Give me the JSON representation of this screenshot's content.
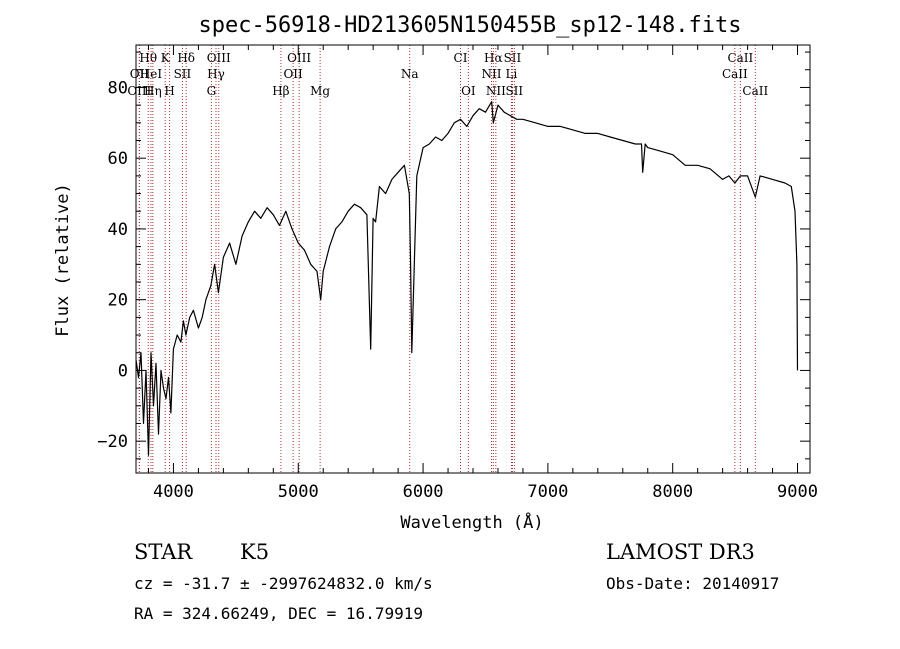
{
  "chart_data": {
    "type": "line",
    "title": "spec-56918-HD213605N150455B_sp12-148.fits",
    "xlabel": "Wavelength (Å)",
    "ylabel": "Flux (relative)",
    "xlim": [
      3700,
      9100
    ],
    "ylim": [
      -29,
      92
    ],
    "xticks": [
      4000,
      5000,
      6000,
      7000,
      8000,
      9000
    ],
    "yticks": [
      -20,
      0,
      20,
      40,
      60,
      80
    ],
    "spectrum": {
      "x": [
        3700,
        3720,
        3740,
        3760,
        3780,
        3800,
        3820,
        3840,
        3860,
        3880,
        3900,
        3920,
        3940,
        3960,
        3980,
        4000,
        4030,
        4060,
        4080,
        4100,
        4130,
        4160,
        4200,
        4230,
        4260,
        4300,
        4330,
        4360,
        4400,
        4450,
        4500,
        4550,
        4600,
        4650,
        4700,
        4750,
        4800,
        4850,
        4900,
        4950,
        5000,
        5050,
        5100,
        5150,
        5180,
        5200,
        5250,
        5300,
        5350,
        5400,
        5450,
        5500,
        5550,
        5580,
        5600,
        5620,
        5650,
        5700,
        5750,
        5800,
        5850,
        5890,
        5900,
        5910,
        5950,
        6000,
        6050,
        6100,
        6150,
        6200,
        6250,
        6300,
        6350,
        6400,
        6450,
        6500,
        6550,
        6563,
        6600,
        6650,
        6700,
        6750,
        6800,
        6900,
        7000,
        7100,
        7200,
        7300,
        7400,
        7500,
        7600,
        7700,
        7750,
        7760,
        7780,
        7800,
        7900,
        8000,
        8100,
        8200,
        8300,
        8400,
        8450,
        8498,
        8542,
        8600,
        8662,
        8700,
        8800,
        8900,
        8950,
        8980,
        8995,
        9000
      ],
      "y": [
        3,
        -2,
        5,
        -15,
        0,
        -24,
        5,
        -10,
        2,
        -18,
        0,
        -5,
        -8,
        -2,
        -12,
        6,
        10,
        8,
        14,
        10,
        15,
        17,
        12,
        15,
        20,
        24,
        30,
        22,
        32,
        36,
        30,
        38,
        42,
        45,
        43,
        46,
        44,
        41,
        45,
        40,
        36,
        34,
        30,
        28,
        20,
        28,
        35,
        40,
        42,
        45,
        47,
        46,
        44,
        6,
        43,
        42,
        52,
        50,
        54,
        56,
        58,
        50,
        30,
        5,
        55,
        63,
        64,
        66,
        65,
        67,
        70,
        71,
        69,
        72,
        74,
        73,
        76,
        70,
        75,
        73,
        72,
        71,
        71,
        70,
        69,
        69,
        68,
        67,
        67,
        66,
        65,
        64,
        64,
        56,
        64,
        63,
        62,
        61,
        58,
        58,
        57,
        54,
        55,
        53,
        55,
        55,
        49,
        55,
        54,
        53,
        52,
        45,
        30,
        0
      ]
    },
    "spectral_lines": [
      {
        "name": "Hθ",
        "wl": 3798,
        "row": 1
      },
      {
        "name": "OII",
        "wl": 3727,
        "row": 2
      },
      {
        "name": "OIII",
        "wl": 3727,
        "row": 3
      },
      {
        "name": "HeI",
        "wl": 3820,
        "row": 2
      },
      {
        "name": "K",
        "wl": 3934,
        "row": 1
      },
      {
        "name": "Hη",
        "wl": 3835,
        "row": 3
      },
      {
        "name": "H",
        "wl": 3969,
        "row": 3
      },
      {
        "name": "SII",
        "wl": 4072,
        "row": 2
      },
      {
        "name": "Hδ",
        "wl": 4102,
        "row": 1
      },
      {
        "name": "OIII",
        "wl": 4363,
        "row": 1
      },
      {
        "name": "Hγ",
        "wl": 4341,
        "row": 2
      },
      {
        "name": "G",
        "wl": 4304,
        "row": 3
      },
      {
        "name": "Hβ",
        "wl": 4861,
        "row": 3
      },
      {
        "name": "OIII",
        "wl": 5007,
        "row": 1
      },
      {
        "name": "OII",
        "wl": 4959,
        "row": 2
      },
      {
        "name": "Mg",
        "wl": 5175,
        "row": 3
      },
      {
        "name": "Na",
        "wl": 5893,
        "row": 2
      },
      {
        "name": "CI",
        "wl": 6300,
        "row": 1
      },
      {
        "name": "OI",
        "wl": 6363,
        "row": 3
      },
      {
        "name": "Hα",
        "wl": 6563,
        "row": 1
      },
      {
        "name": "SII",
        "wl": 6716,
        "row": 1
      },
      {
        "name": "NII",
        "wl": 6548,
        "row": 2
      },
      {
        "name": "Li",
        "wl": 6708,
        "row": 2
      },
      {
        "name": "NII",
        "wl": 6583,
        "row": 3
      },
      {
        "name": "SII",
        "wl": 6731,
        "row": 3
      },
      {
        "name": "CaII",
        "wl": 8542,
        "row": 1
      },
      {
        "name": "CaII",
        "wl": 8498,
        "row": 2
      },
      {
        "name": "CaII",
        "wl": 8662,
        "row": 3
      }
    ]
  },
  "info": {
    "object_class": "STAR",
    "subclass": "K5",
    "survey": "LAMOST DR3",
    "cz_line": "cz = -31.7 ± -2997624832.0 km/s",
    "obs_date": "Obs-Date: 20140917",
    "coords": "RA = 324.66249, DEC =  16.79919"
  }
}
